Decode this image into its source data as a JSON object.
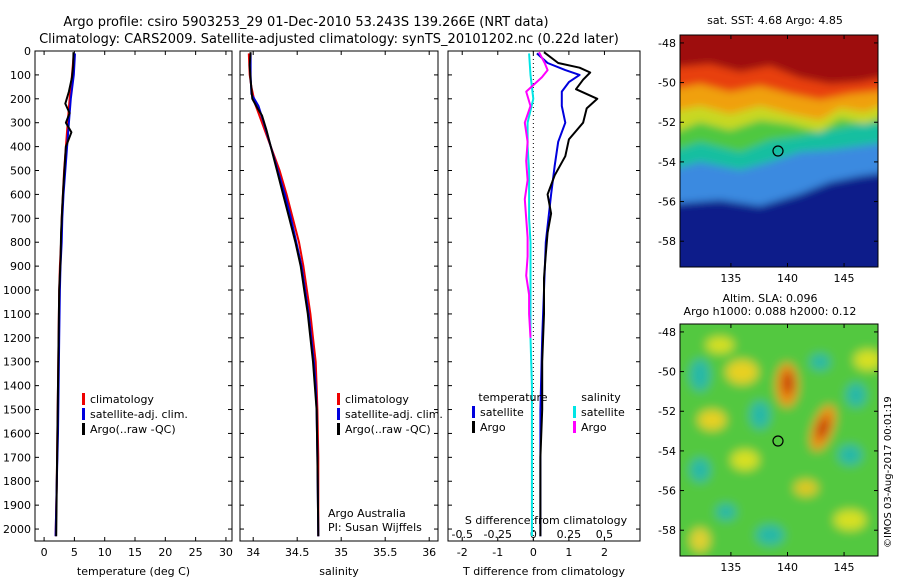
{
  "header": {
    "title_line1": "Argo profile: csiro 5903253_29 01-Dec-2010 53.243S 139.266E (NRT data)",
    "title_line2": "Climatology: CARS2009. Satellite-adjusted climatology: synTS_20101202.nc (0.22d later)"
  },
  "colors": {
    "climatology": "#ee0000",
    "satellite": "#0000dd",
    "argo": "#000000",
    "salinity_argo": "#ff00ff",
    "salinity_satellite": "#00e5e5"
  },
  "texts": {
    "legend_climatology": "climatology",
    "legend_satellite_adj": "satellite-adj. clim.",
    "legend_argo_raw": "Argo(..raw -QC)",
    "legend_temperature": "temperature",
    "legend_salinity": "salinity",
    "legend_satellite": "satellite",
    "legend_argo": "Argo",
    "argo_australia": "Argo Australia",
    "pi_name": "PI: Susan Wijffels",
    "s_diff_label": "S difference from climatology",
    "t_diff_label": "T difference from climatology",
    "sst_title": "sat. SST: 4.68 Argo: 4.85",
    "sla_title1": "Altim. SLA: 0.096",
    "sla_title2": "Argo h1000: 0.088 h2000: 0.12",
    "imos_stamp": "©IMOS 03-Aug-2017 00:01:19"
  },
  "chart_data": [
    {
      "type": "line",
      "xlabel": "temperature (deg C)",
      "ylabel": "",
      "xlim": [
        -1.5,
        31
      ],
      "ylim": [
        2050,
        0
      ],
      "xticks": [
        0,
        5,
        10,
        15,
        20,
        25,
        30
      ],
      "yticks": [
        0,
        100,
        200,
        300,
        400,
        500,
        600,
        700,
        800,
        900,
        1000,
        1100,
        1200,
        1300,
        1400,
        1500,
        1600,
        1700,
        1800,
        1900,
        2000
      ],
      "series": [
        {
          "name": "climatology",
          "color": "#ee0000",
          "points": [
            [
              4.9,
              10
            ],
            [
              4.6,
              100
            ],
            [
              4.2,
              200
            ],
            [
              3.9,
              300
            ],
            [
              3.6,
              400
            ],
            [
              3.3,
              500
            ],
            [
              3.1,
              600
            ],
            [
              2.9,
              700
            ],
            [
              2.8,
              800
            ],
            [
              2.6,
              900
            ],
            [
              2.5,
              1000
            ],
            [
              2.4,
              1200
            ],
            [
              2.3,
              1400
            ],
            [
              2.2,
              1600
            ],
            [
              2.1,
              1800
            ],
            [
              1.9,
              2030
            ]
          ]
        },
        {
          "name": "satellite-adj. clim.",
          "color": "#0000dd",
          "points": [
            [
              5.1,
              10
            ],
            [
              4.9,
              100
            ],
            [
              4.4,
              200
            ],
            [
              4.1,
              300
            ],
            [
              3.8,
              400
            ],
            [
              3.5,
              500
            ],
            [
              3.2,
              600
            ],
            [
              3.0,
              700
            ],
            [
              2.9,
              800
            ],
            [
              2.7,
              900
            ],
            [
              2.6,
              1000
            ],
            [
              2.5,
              1200
            ],
            [
              2.4,
              1400
            ],
            [
              2.3,
              1600
            ],
            [
              2.1,
              1800
            ],
            [
              1.9,
              2030
            ]
          ]
        },
        {
          "name": "Argo(..raw -QC)",
          "color": "#000000",
          "points": [
            [
              4.85,
              5
            ],
            [
              4.8,
              60
            ],
            [
              4.6,
              110
            ],
            [
              4.1,
              170
            ],
            [
              3.5,
              220
            ],
            [
              4.2,
              260
            ],
            [
              3.6,
              300
            ],
            [
              4.5,
              340
            ],
            [
              3.6,
              400
            ],
            [
              3.4,
              480
            ],
            [
              3.2,
              560
            ],
            [
              3.0,
              650
            ],
            [
              2.8,
              760
            ],
            [
              2.7,
              880
            ],
            [
              2.5,
              1000
            ],
            [
              2.4,
              1200
            ],
            [
              2.3,
              1400
            ],
            [
              2.2,
              1600
            ],
            [
              2.1,
              1800
            ],
            [
              2.0,
              2030
            ]
          ]
        }
      ],
      "legend": [
        "climatology",
        "satellite-adj. clim.",
        "Argo(..raw -QC)"
      ],
      "legend_position": "lower-right"
    },
    {
      "type": "line",
      "xlabel": "salinity",
      "ylabel": "",
      "xlim": [
        33.85,
        36.1
      ],
      "ylim": [
        2050,
        0
      ],
      "xticks": [
        34,
        34.5,
        35,
        35.5,
        36
      ],
      "series": [
        {
          "name": "climatology",
          "color": "#ee0000",
          "points": [
            [
              33.95,
              10
            ],
            [
              33.96,
              100
            ],
            [
              33.98,
              150
            ],
            [
              34.02,
              220
            ],
            [
              34.1,
              300
            ],
            [
              34.2,
              400
            ],
            [
              34.3,
              500
            ],
            [
              34.38,
              600
            ],
            [
              34.45,
              700
            ],
            [
              34.52,
              800
            ],
            [
              34.57,
              900
            ],
            [
              34.61,
              1000
            ],
            [
              34.65,
              1100
            ],
            [
              34.68,
              1200
            ],
            [
              34.71,
              1300
            ],
            [
              34.72,
              1400
            ],
            [
              34.73,
              1500
            ],
            [
              34.74,
              1700
            ],
            [
              34.74,
              2030
            ]
          ]
        },
        {
          "name": "satellite-adj. clim.",
          "color": "#0000dd",
          "points": [
            [
              33.97,
              10
            ],
            [
              33.97,
              100
            ],
            [
              33.98,
              180
            ],
            [
              34.06,
              230
            ],
            [
              34.12,
              300
            ],
            [
              34.2,
              400
            ],
            [
              34.28,
              500
            ],
            [
              34.36,
              600
            ],
            [
              34.43,
              700
            ],
            [
              34.49,
              800
            ],
            [
              34.55,
              900
            ],
            [
              34.59,
              1000
            ],
            [
              34.63,
              1100
            ],
            [
              34.66,
              1200
            ],
            [
              34.69,
              1300
            ],
            [
              34.71,
              1400
            ],
            [
              34.72,
              1500
            ],
            [
              34.73,
              1700
            ],
            [
              34.74,
              2030
            ]
          ]
        },
        {
          "name": "Argo(..raw -QC)",
          "color": "#000000",
          "points": [
            [
              33.97,
              5
            ],
            [
              33.96,
              60
            ],
            [
              33.97,
              120
            ],
            [
              33.99,
              200
            ],
            [
              34.05,
              240
            ],
            [
              34.1,
              270
            ],
            [
              34.15,
              330
            ],
            [
              34.2,
              400
            ],
            [
              34.27,
              500
            ],
            [
              34.34,
              600
            ],
            [
              34.41,
              700
            ],
            [
              34.48,
              800
            ],
            [
              34.54,
              900
            ],
            [
              34.58,
              1000
            ],
            [
              34.62,
              1100
            ],
            [
              34.65,
              1200
            ],
            [
              34.68,
              1300
            ],
            [
              34.7,
              1400
            ],
            [
              34.72,
              1500
            ],
            [
              34.73,
              1700
            ],
            [
              34.74,
              2030
            ]
          ]
        }
      ],
      "legend": [
        "climatology",
        "satellite-adj. clim.",
        "Argo(..raw -QC)"
      ],
      "legend_position": "lower-right"
    },
    {
      "type": "line",
      "xlabel": "T difference from climatology",
      "x2label": "S difference from climatology",
      "xlim": [
        -2.4,
        3.0
      ],
      "x2lim": [
        -0.6,
        0.75
      ],
      "ylim": [
        2050,
        0
      ],
      "xticks": [
        -2,
        -1,
        0,
        1,
        2
      ],
      "x2ticks": [
        -0.5,
        -0.25,
        0,
        0.25,
        0.5
      ],
      "x2ticklabels": [
        "-0.5",
        "-0.25",
        "0",
        "0.25",
        "0.5"
      ],
      "series": [
        {
          "name": "temperature satellite",
          "color": "#0000dd",
          "points": [
            [
              0.1,
              10
            ],
            [
              0.4,
              50
            ],
            [
              0.9,
              80
            ],
            [
              1.3,
              100
            ],
            [
              1.0,
              130
            ],
            [
              0.8,
              170
            ],
            [
              0.8,
              230
            ],
            [
              0.9,
              300
            ],
            [
              0.7,
              380
            ],
            [
              0.6,
              480
            ],
            [
              0.5,
              600
            ],
            [
              0.35,
              800
            ],
            [
              0.3,
              1000
            ],
            [
              0.25,
              1200
            ],
            [
              0.2,
              1500
            ],
            [
              0.2,
              1800
            ],
            [
              0.2,
              2030
            ]
          ]
        },
        {
          "name": "temperature Argo",
          "color": "#000000",
          "points": [
            [
              0.3,
              5
            ],
            [
              0.7,
              50
            ],
            [
              1.3,
              70
            ],
            [
              1.6,
              90
            ],
            [
              1.4,
              120
            ],
            [
              1.2,
              160
            ],
            [
              1.8,
              200
            ],
            [
              1.5,
              240
            ],
            [
              1.4,
              300
            ],
            [
              1.0,
              370
            ],
            [
              0.9,
              440
            ],
            [
              0.6,
              520
            ],
            [
              0.4,
              600
            ],
            [
              0.5,
              680
            ],
            [
              0.4,
              760
            ],
            [
              0.35,
              850
            ],
            [
              0.3,
              950
            ],
            [
              0.3,
              1100
            ],
            [
              0.25,
              1300
            ],
            [
              0.25,
              1500
            ],
            [
              0.2,
              1700
            ],
            [
              0.2,
              2030
            ]
          ]
        },
        {
          "name": "salinity satellite",
          "color": "#00e5e5",
          "points": [
            [
              -0.03,
              10
            ],
            [
              -0.02,
              100
            ],
            [
              0.0,
              200
            ],
            [
              -0.04,
              300
            ],
            [
              -0.04,
              400
            ],
            [
              -0.03,
              500
            ],
            [
              -0.03,
              600
            ],
            [
              -0.03,
              700
            ],
            [
              -0.02,
              800
            ],
            [
              -0.02,
              900
            ],
            [
              -0.02,
              1000
            ],
            [
              -0.02,
              1200
            ],
            [
              -0.01,
              1400
            ],
            [
              -0.01,
              1600
            ],
            [
              -0.01,
              1800
            ],
            [
              -0.01,
              2030
            ]
          ]
        },
        {
          "name": "salinity Argo",
          "color": "#ff00ff",
          "points": [
            [
              0.04,
              5
            ],
            [
              0.08,
              50
            ],
            [
              0.1,
              80
            ],
            [
              0.06,
              110
            ],
            [
              -0.05,
              170
            ],
            [
              -0.02,
              230
            ],
            [
              -0.06,
              300
            ],
            [
              -0.04,
              380
            ],
            [
              -0.05,
              460
            ],
            [
              -0.04,
              540
            ],
            [
              -0.06,
              620
            ],
            [
              -0.05,
              700
            ],
            [
              -0.04,
              780
            ],
            [
              -0.04,
              860
            ],
            [
              -0.05,
              940
            ],
            [
              -0.03,
              1020
            ],
            [
              -0.03,
              1100
            ],
            [
              -0.02,
              1200
            ]
          ]
        }
      ],
      "legend": [
        "temperature satellite",
        "temperature Argo",
        "salinity satellite",
        "salinity Argo"
      ],
      "legend_position": "lower-right"
    },
    {
      "type": "heatmap",
      "title": "sat. SST: 4.68 Argo: 4.85",
      "xlim": [
        130.5,
        148
      ],
      "ylim": [
        -59.3,
        -47.6
      ],
      "xticks": [
        135,
        140,
        145
      ],
      "yticks": [
        -48,
        -50,
        -52,
        -54,
        -56,
        -58
      ],
      "marker": {
        "lon": 139.27,
        "lat": -53.24
      }
    },
    {
      "type": "heatmap",
      "title": "Altim. SLA: 0.096",
      "subtitle": "Argo h1000: 0.088 h2000: 0.12",
      "xlim": [
        130.5,
        148
      ],
      "ylim": [
        -59.3,
        -47.6
      ],
      "xticks": [
        135,
        140,
        145
      ],
      "yticks": [
        -48,
        -50,
        -52,
        -54,
        -56,
        -58
      ],
      "marker": {
        "lon": 139.27,
        "lat": -53.24
      }
    }
  ]
}
